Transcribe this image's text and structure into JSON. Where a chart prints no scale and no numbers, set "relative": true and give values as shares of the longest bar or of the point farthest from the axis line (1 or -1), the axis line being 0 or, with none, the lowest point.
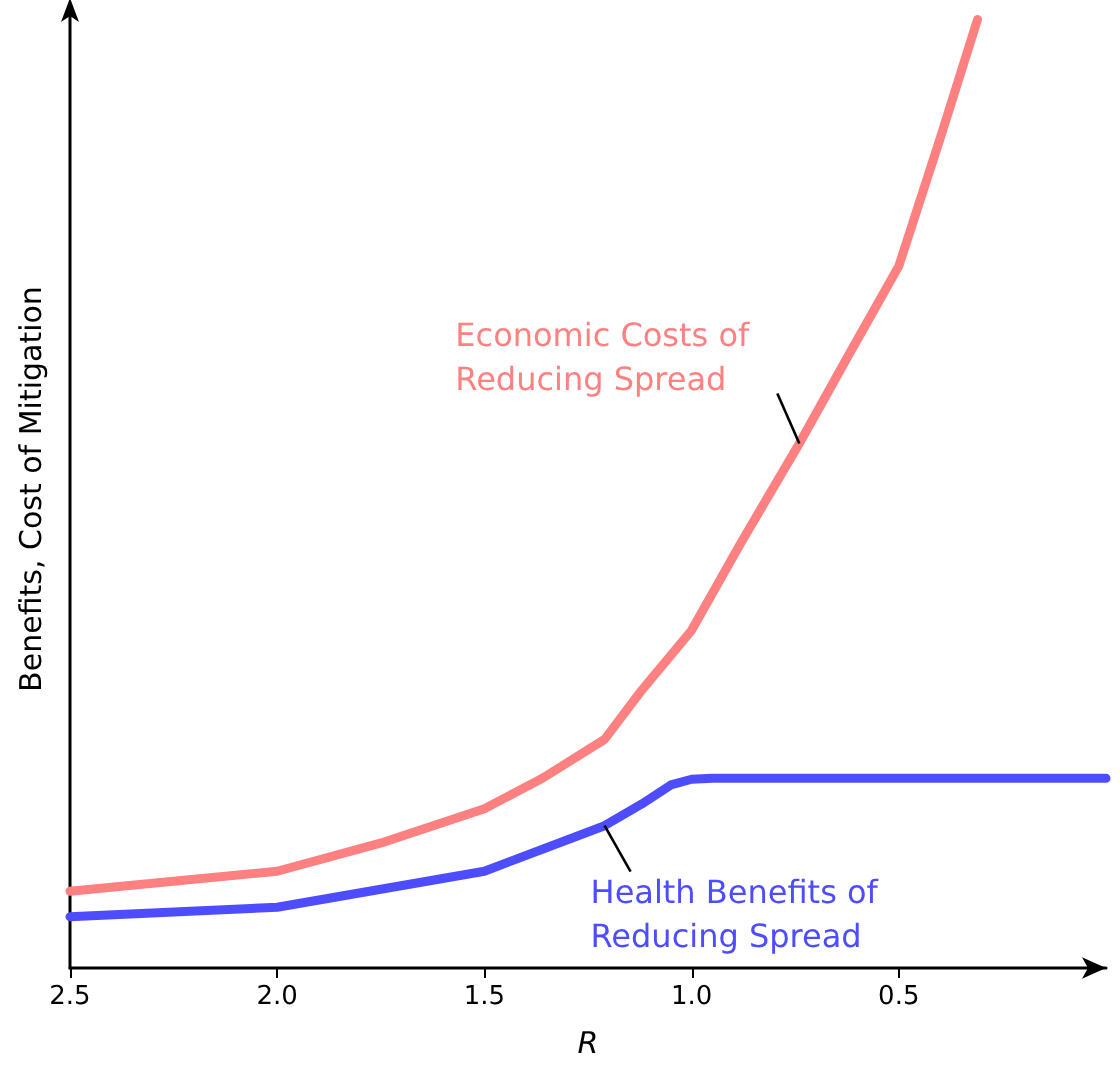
{
  "chart_data": {
    "type": "line",
    "relative": true,
    "xlabel": "R",
    "ylabel": "Benefits, Cost of Mitigation",
    "xlim": [
      2.5,
      0
    ],
    "xticks": [
      {
        "value": 2.5,
        "label": "2.5"
      },
      {
        "value": 2,
        "label": "2.0"
      },
      {
        "value": 1.5,
        "label": "1.5"
      },
      {
        "value": 1,
        "label": "1.0"
      },
      {
        "value": 0.5,
        "label": "0.5"
      }
    ],
    "grid": false,
    "legend": false,
    "marker": "none",
    "line_style": "solid",
    "series": [
      {
        "name": "Economic Costs of\nReducing Spread",
        "color": "#ff8080",
        "x": [
          2.5,
          2.0,
          1.74,
          1.5,
          1.36,
          1.21,
          1.12,
          1.0,
          0.88,
          0.74,
          0.62,
          0.5,
          0.4,
          0.31
        ],
        "values": [
          0.081,
          0.102,
          0.133,
          0.168,
          0.2,
          0.241,
          0.293,
          0.356,
          0.449,
          0.553,
          0.647,
          0.74,
          0.875,
          1.0
        ]
      },
      {
        "name": "Health Benefits of\nReducing Spread",
        "color": "#4d4dff",
        "x": [
          2.5,
          2.0,
          1.5,
          1.21,
          1.12,
          1.05,
          1.0,
          0.95,
          0.5,
          0.0
        ],
        "values": [
          0.054,
          0.064,
          0.102,
          0.15,
          0.173,
          0.193,
          0.199,
          0.2,
          0.2,
          0.2
        ]
      }
    ]
  }
}
